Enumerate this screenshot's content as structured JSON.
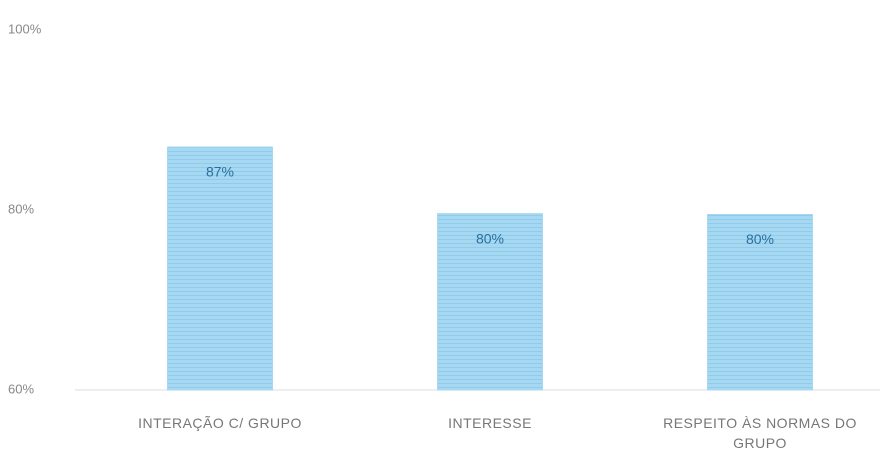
{
  "chart_data": {
    "type": "bar",
    "categories": [
      "INTERAÇÃO C/ GRUPO",
      "INTERESSE",
      "RESPEITO ÀS NORMAS DO GRUPO"
    ],
    "values": [
      87,
      79.6,
      79.5
    ],
    "value_labels": [
      "87%",
      "80%",
      "80%"
    ],
    "color": "#a6d8f2",
    "ylim": [
      60,
      100
    ],
    "yticks": [
      {
        "value": 100,
        "label": "100%"
      },
      {
        "value": 80,
        "label": "80%"
      },
      {
        "value": 60,
        "label": "60%"
      }
    ],
    "grid": false
  }
}
